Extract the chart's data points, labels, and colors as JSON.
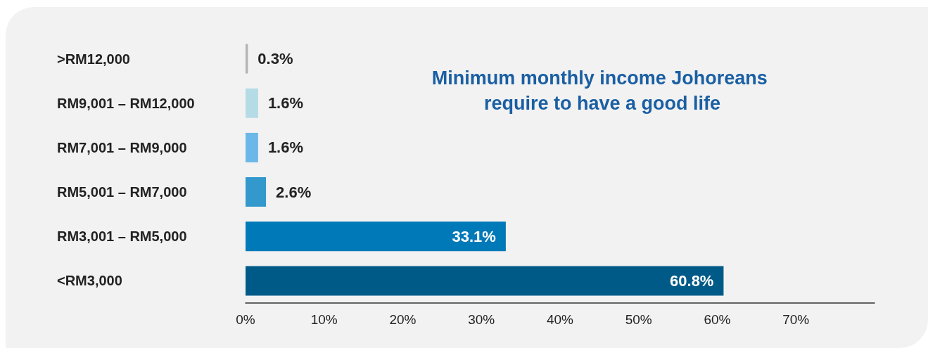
{
  "chart_data": {
    "type": "bar",
    "orientation": "horizontal",
    "title": "Minimum monthly income Johoreans require to have a good life",
    "categories": [
      ">RM12,000",
      "RM9,001 – RM12,000",
      "RM7,001 – RM9,000",
      "RM5,001 – RM7,000",
      "RM3,001 – RM5,000",
      "<RM3,000"
    ],
    "values": [
      0.3,
      1.6,
      1.6,
      2.6,
      33.1,
      60.8
    ],
    "colors": [
      "#b3b3b3",
      "#b5dbe6",
      "#6bb8e8",
      "#3399cc",
      "#0079b8",
      "#005a87"
    ],
    "value_labels": [
      "0.3%",
      "1.6%",
      "1.6%",
      "2.6%",
      "33.1%",
      "60.8%"
    ],
    "xlim": [
      0,
      80
    ],
    "xticks": [
      {
        "value": 0,
        "label": "0%"
      },
      {
        "value": 10,
        "label": "10%"
      },
      {
        "value": 20,
        "label": "20%"
      },
      {
        "value": 30,
        "label": "30%"
      },
      {
        "value": 40,
        "label": "40%"
      },
      {
        "value": 50,
        "label": "50%"
      },
      {
        "value": 60,
        "label": "60%"
      },
      {
        "value": 70,
        "label": "70%"
      }
    ],
    "grid": false
  }
}
